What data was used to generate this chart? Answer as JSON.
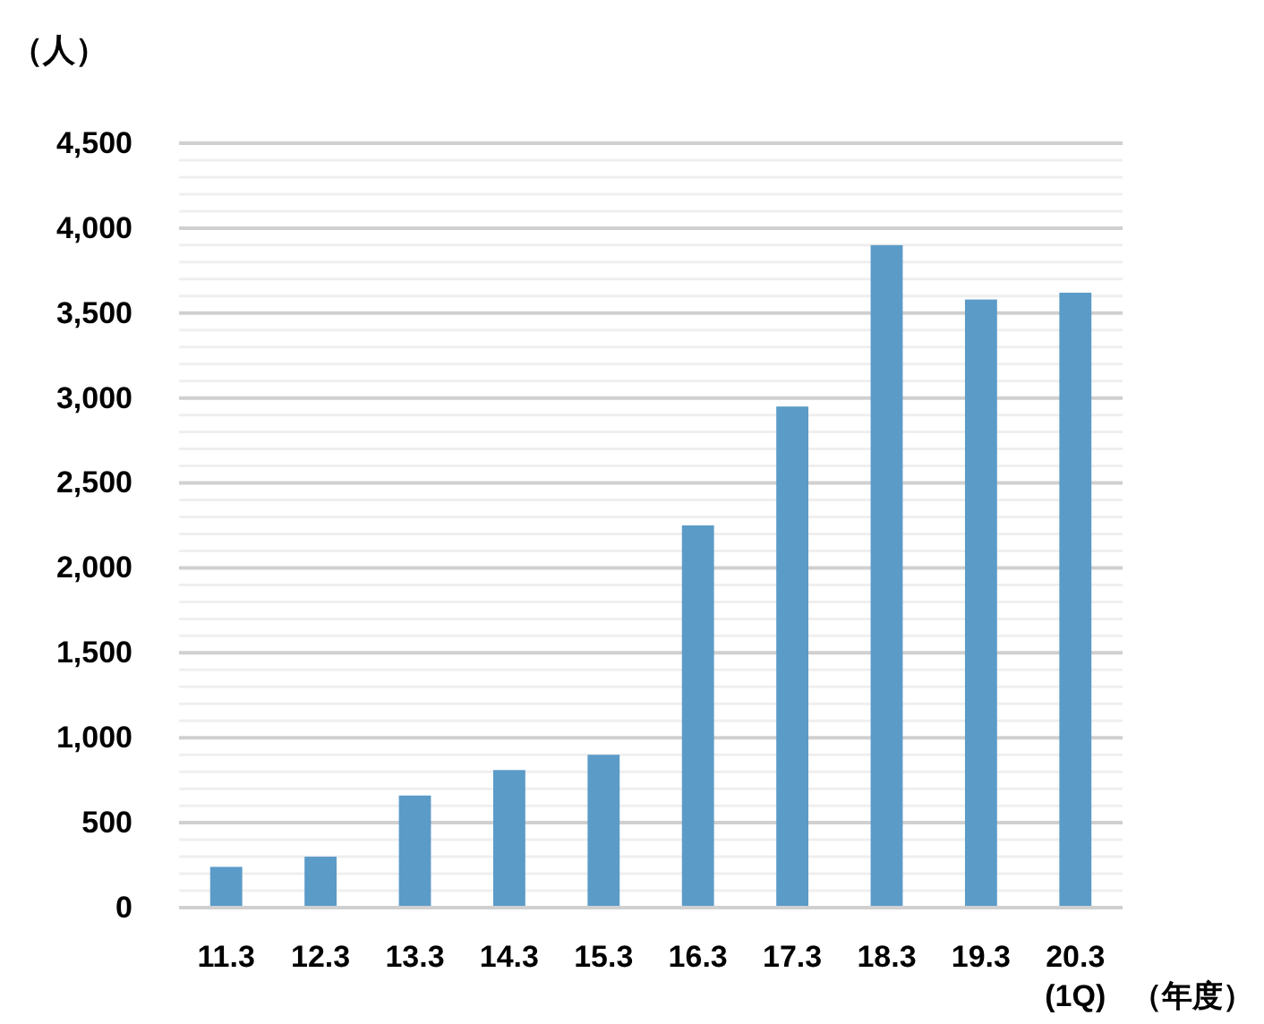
{
  "chart_data": {
    "type": "bar",
    "categories": [
      "11.3",
      "12.3",
      "13.3",
      "14.3",
      "15.3",
      "16.3",
      "17.3",
      "18.3",
      "19.3",
      "20.3\n(1Q)"
    ],
    "values": [
      240,
      300,
      660,
      810,
      900,
      2250,
      2950,
      3900,
      3580,
      3620
    ],
    "color": "#5b9bc8",
    "ylabel": "（人）",
    "xlabel": "（年度）",
    "ylim": [
      0,
      4500
    ],
    "yticks": [
      {
        "value": 0,
        "label": "0"
      },
      {
        "value": 100,
        "label": null
      },
      {
        "value": 200,
        "label": null
      },
      {
        "value": 300,
        "label": null
      },
      {
        "value": 400,
        "label": null
      },
      {
        "value": 500,
        "label": "500"
      },
      {
        "value": 600,
        "label": null
      },
      {
        "value": 700,
        "label": null
      },
      {
        "value": 800,
        "label": null
      },
      {
        "value": 900,
        "label": null
      },
      {
        "value": 1000,
        "label": "1,000"
      },
      {
        "value": 1100,
        "label": null
      },
      {
        "value": 1200,
        "label": null
      },
      {
        "value": 1300,
        "label": null
      },
      {
        "value": 1400,
        "label": null
      },
      {
        "value": 1500,
        "label": "1,500"
      },
      {
        "value": 1600,
        "label": null
      },
      {
        "value": 1700,
        "label": null
      },
      {
        "value": 1800,
        "label": null
      },
      {
        "value": 1900,
        "label": null
      },
      {
        "value": 2000,
        "label": "2,000"
      },
      {
        "value": 2100,
        "label": null
      },
      {
        "value": 2200,
        "label": null
      },
      {
        "value": 2300,
        "label": null
      },
      {
        "value": 2400,
        "label": null
      },
      {
        "value": 2500,
        "label": "2,500"
      },
      {
        "value": 2600,
        "label": null
      },
      {
        "value": 2700,
        "label": null
      },
      {
        "value": 2800,
        "label": null
      },
      {
        "value": 2900,
        "label": null
      },
      {
        "value": 3000,
        "label": "3,000"
      },
      {
        "value": 3100,
        "label": null
      },
      {
        "value": 3200,
        "label": null
      },
      {
        "value": 3300,
        "label": null
      },
      {
        "value": 3400,
        "label": null
      },
      {
        "value": 3500,
        "label": "3,500"
      },
      {
        "value": 3600,
        "label": null
      },
      {
        "value": 3700,
        "label": null
      },
      {
        "value": 3800,
        "label": null
      },
      {
        "value": 3900,
        "label": null
      },
      {
        "value": 4000,
        "label": "4,000"
      },
      {
        "value": 4100,
        "label": null
      },
      {
        "value": 4200,
        "label": null
      },
      {
        "value": 4300,
        "label": null
      },
      {
        "value": 4400,
        "label": null
      },
      {
        "value": 4500,
        "label": "4,500"
      }
    ],
    "grid": "y"
  }
}
